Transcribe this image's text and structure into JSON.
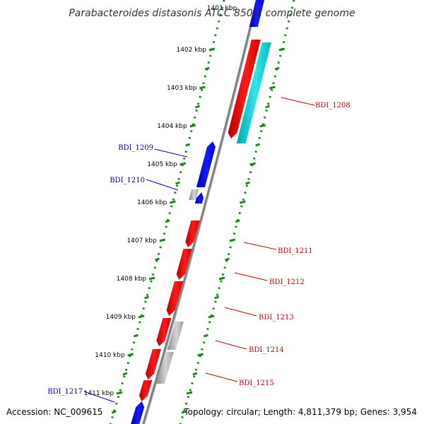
{
  "title": "Parabacteroides distasonis ATCC 8503, complete genome",
  "accession": "Accession: NC_009615",
  "topology": "Topology: circular; Length: 4,811,379 bp; Genes: 3,954",
  "top_partial_tick": "1401 kbp",
  "ticks": [
    {
      "label": "1402 kbp",
      "kbp": 1402
    },
    {
      "label": "1403 kbp",
      "kbp": 1403
    },
    {
      "label": "1404 kbp",
      "kbp": 1404
    },
    {
      "label": "1405 kbp",
      "kbp": 1405
    },
    {
      "label": "1406 kbp",
      "kbp": 1406
    },
    {
      "label": "1407 kbp",
      "kbp": 1407
    },
    {
      "label": "1408 kbp",
      "kbp": 1408
    },
    {
      "label": "1409 kbp",
      "kbp": 1409
    },
    {
      "label": "1410 kbp",
      "kbp": 1410
    },
    {
      "label": "1411 kbp",
      "kbp": 1411
    }
  ],
  "genes_labeled": [
    {
      "label": "BDI_1208",
      "strand": "forward"
    },
    {
      "label": "BDI_1209",
      "strand": "reverse"
    },
    {
      "label": "BDI_1210",
      "strand": "reverse"
    },
    {
      "label": "BDI_1211",
      "strand": "forward"
    },
    {
      "label": "BDI_1212",
      "strand": "forward"
    },
    {
      "label": "BDI_1213",
      "strand": "forward"
    },
    {
      "label": "BDI_1214",
      "strand": "forward"
    },
    {
      "label": "BDI_1215",
      "strand": "forward"
    },
    {
      "label": "BDI_1217",
      "strand": "reverse"
    }
  ],
  "colors": {
    "forward_cds": "#ff0000",
    "reverse_cds": "#0000ff",
    "other_feature": "#b0b0b0",
    "rna_feature": "#00cccc",
    "backbone": "#808080",
    "dotted_ring": "#1a8a1a",
    "forward_label": "#cc0000",
    "reverse_label": "#0000aa"
  }
}
